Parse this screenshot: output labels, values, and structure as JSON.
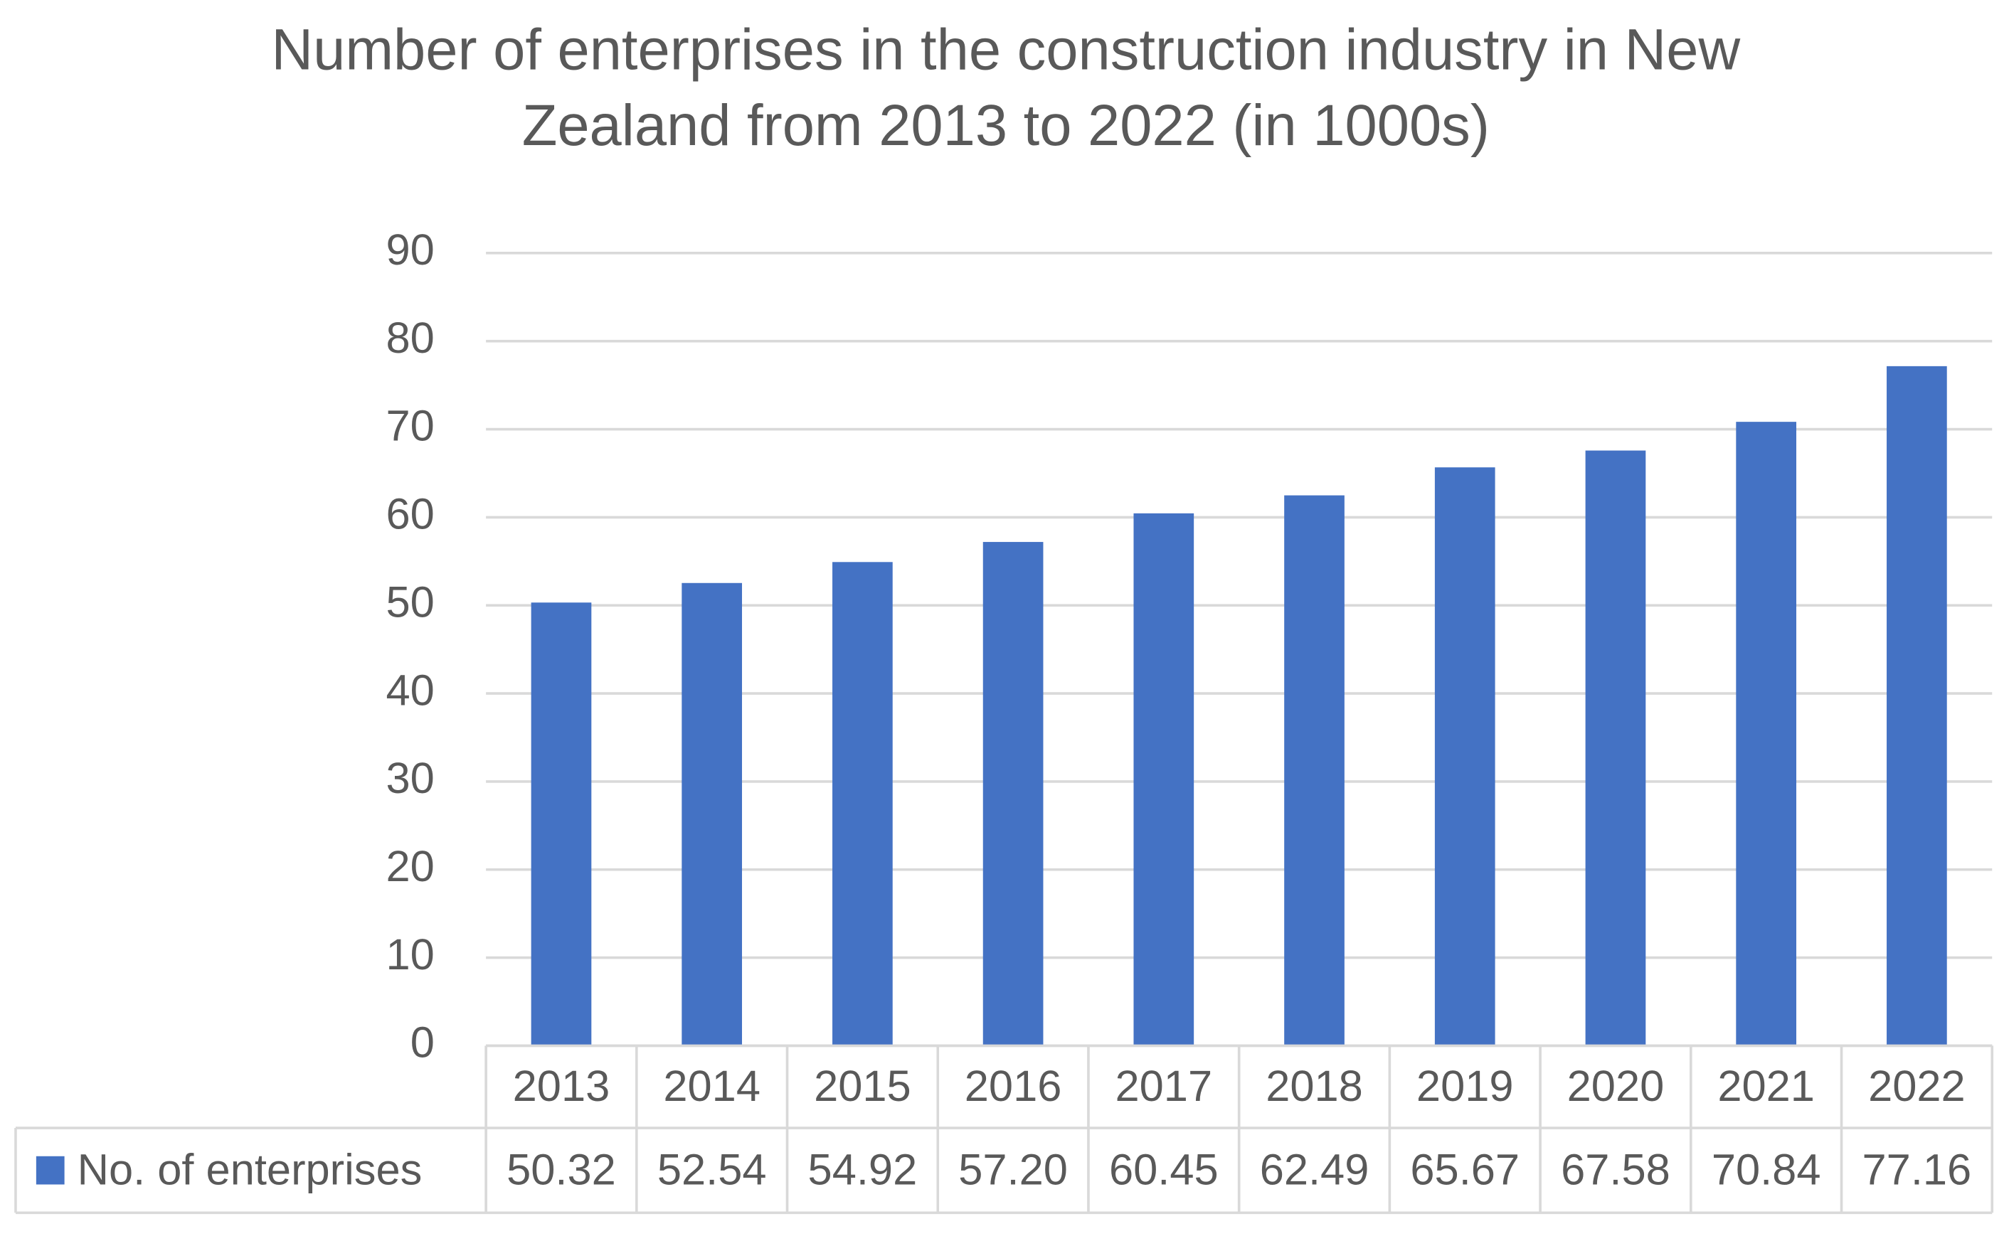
{
  "chart_data": {
    "type": "bar",
    "title": "Number of enterprises in the construction industry in New Zealand from 2013 to 2022 (in 1000s)",
    "categories": [
      "2013",
      "2014",
      "2015",
      "2016",
      "2017",
      "2018",
      "2019",
      "2020",
      "2021",
      "2022"
    ],
    "series": [
      {
        "name": "No. of enterprises",
        "color": "#4472c4",
        "values": [
          50.32,
          52.54,
          54.92,
          57.2,
          60.45,
          62.49,
          65.67,
          67.58,
          70.84,
          77.16
        ],
        "value_labels": [
          "50.32",
          "52.54",
          "54.92",
          "57.20",
          "60.45",
          "62.49",
          "65.67",
          "67.58",
          "70.84",
          "77.16"
        ]
      }
    ],
    "ylim": [
      0,
      90
    ],
    "yticks": [
      0,
      10,
      20,
      30,
      40,
      50,
      60,
      70,
      80,
      90
    ],
    "grid": true,
    "data_table": true
  }
}
